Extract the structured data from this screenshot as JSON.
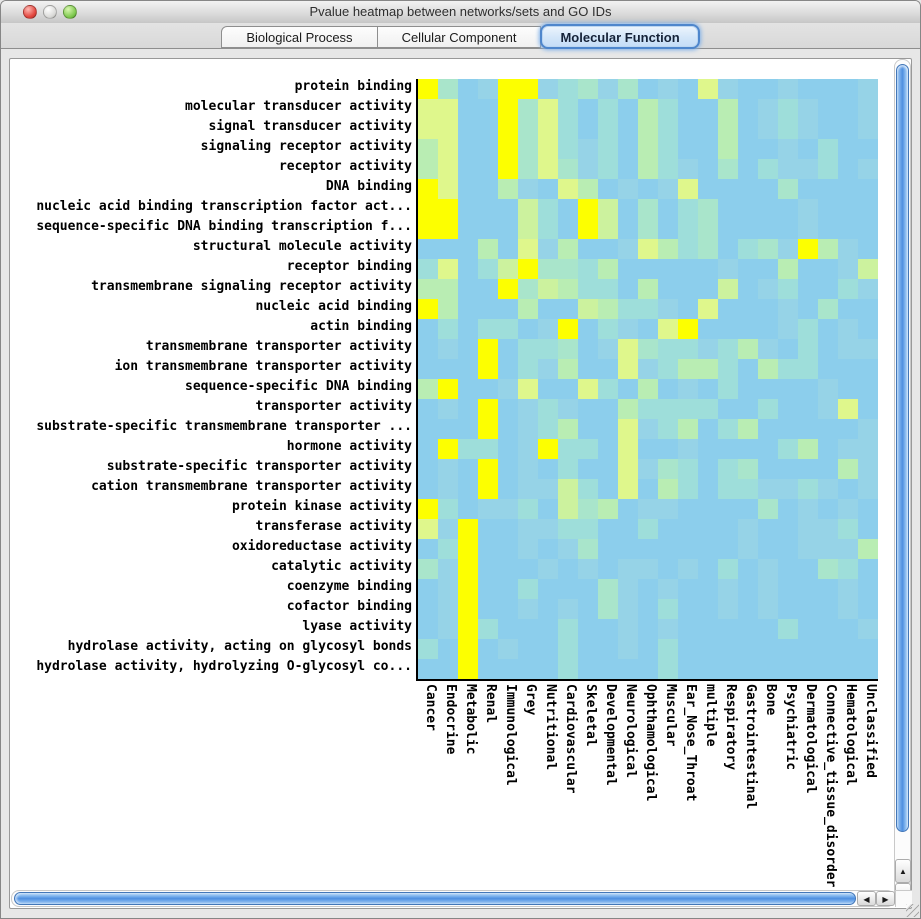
{
  "window": {
    "title": "Pvalue heatmap between networks/sets and GO IDs"
  },
  "tabs": [
    {
      "label": "Biological Process",
      "selected": false
    },
    {
      "label": "Cellular Component",
      "selected": false
    },
    {
      "label": "Molecular Function",
      "selected": true
    }
  ],
  "heatmap": {
    "row_labels": [
      "protein binding",
      "molecular transducer activity",
      "signal transducer activity",
      "signaling receptor activity",
      "receptor activity",
      "DNA binding",
      "nucleic acid binding transcription factor act...",
      "sequence-specific DNA binding transcription f...",
      "structural molecule activity",
      "receptor binding",
      "transmembrane signaling receptor activity",
      "nucleic acid binding",
      "actin binding",
      "transmembrane transporter activity",
      "ion transmembrane transporter activity",
      "sequence-specific DNA binding",
      "transporter activity",
      "substrate-specific transmembrane transporter ...",
      "hormone activity",
      "substrate-specific transporter activity",
      "cation transmembrane transporter activity",
      "protein kinase activity",
      "transferase activity",
      "oxidoreductase activity",
      "catalytic activity",
      "coenzyme binding",
      "cofactor binding",
      "lyase activity",
      "hydrolase activity, acting on glycosyl bonds",
      "hydrolase activity, hydrolyzing O-glycosyl co..."
    ],
    "col_labels": [
      "Cancer",
      "Endocrine",
      "Metabolic",
      "Renal",
      "Immunological",
      "Grey",
      "Nutritional",
      "Cardiovascular",
      "Skeletal",
      "Developmental",
      "Neurological",
      "Ophthamological",
      "Muscular",
      "Ear_Nose_Throat",
      "multiple",
      "Respiratory",
      "Gastrointestinal",
      "Bone",
      "Psychiatric",
      "Dermatological",
      "Connective_tissue_disorder",
      "Hematological",
      "Unclassified"
    ],
    "palette": [
      "#8CCEEC",
      "#96D3E7",
      "#9EDEDA",
      "#A9E5CB",
      "#B9EDB3",
      "#CCF29E",
      "#DFF78C",
      "#EFFB5E",
      "#FDFF00"
    ],
    "grid": [
      "83018812313010610010001",
      "66008362020420040121001",
      "66008362020420040121001",
      "46008362120420040010200",
      "46008363120421030211201",
      "86004106401016000030000",
      "88000520850302300001000",
      "88000520850302300001000",
      "00040614001642302318410",
      "26025833240000010040015",
      "44008354220400050120021",
      "84000400542210600010300",
      "02022018021068000012010",
      "01080223016322124102011",
      "00080214006124420422000",
      "48001600620401020000100",
      "01080121004222200200160",
      "00080124006124024000001",
      "08220182206001000024011",
      "01080102006132023000041",
      "01080115206042022112101",
      "82011205340110000301010",
      "61800112200200001001120",
      "02800101300000001001114",
      "31800010101101020100320",
      "01800200031010010100010",
      "01800101031020010100010",
      "01820002001010000020001",
      "20801002001020000000000",
      "00800002000020000000000"
    ]
  },
  "scrollbar_icons": {
    "up": "▲",
    "down": "▼",
    "left": "◀",
    "right": "▶"
  }
}
